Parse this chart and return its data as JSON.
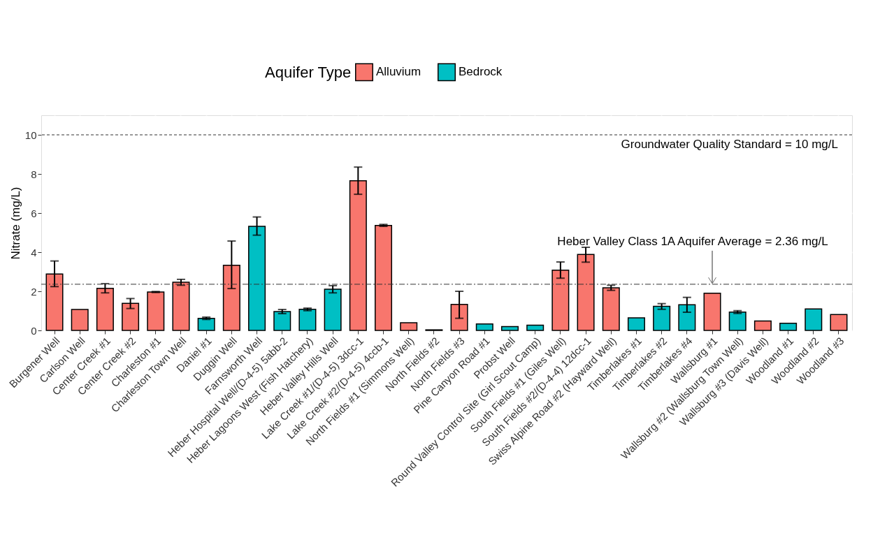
{
  "chart_data": {
    "type": "bar",
    "ylabel": "Nitrate (mg/L)",
    "legend_title": "Aquifer Type",
    "legend": "top",
    "grid": true,
    "categories": [
      "Burgener Well",
      "Carlson Well",
      "Center Creek #1",
      "Center Creek #2",
      "Charleston #1",
      "Charleston Town Well",
      "Daniel #1",
      "Duggin Well",
      "Farnsworth Well",
      "Heber Hospital Well/(D-4-5) 5abb-2",
      "Heber Lagoons West (Fish Hatchery)",
      "Heber Valley Hills Well",
      "Lake Creek #1/(D-4-5) 3dcc-1",
      "Lake Creek #2/(D-4-5) 4ccb-1",
      "North Fields #1 (Simmons Well)",
      "North Fields #2",
      "North Fields #3",
      "Pine Canyon Road #1",
      "Probst Well",
      "Round Valley Control Site (Girl Scout Camp)",
      "South Fields #1 (Giles Well)",
      "South Fields #2/(D-4-4) 12dcc-1",
      "Swiss Alpine Road #2 (Hayward Well)",
      "Timberlakes #1",
      "Timberlakes #2",
      "Timberlakes #4",
      "Wallsburg #1",
      "Wallsburg #2 (Wallsburg Town Well)",
      "Wallsburg #3 (Davis Well)",
      "Woodland #1",
      "Woodland #2",
      "Woodland #3"
    ],
    "series": [
      {
        "name": "Alluvium",
        "color": "#f8766d",
        "values": [
          2.88,
          1.07,
          2.15,
          1.38,
          1.96,
          2.46,
          null,
          3.33,
          null,
          null,
          null,
          null,
          7.65,
          5.37,
          0.39,
          0.03,
          1.33,
          null,
          null,
          null,
          3.08,
          3.88,
          2.18,
          null,
          null,
          null,
          1.9,
          null,
          0.48,
          null,
          null,
          0.81
        ],
        "errors": [
          [
            2.24,
            3.55
          ],
          null,
          [
            1.92,
            2.39
          ],
          [
            1.12,
            1.63
          ],
          [
            1.94,
            1.99
          ],
          [
            2.31,
            2.61
          ],
          null,
          [
            2.14,
            4.57
          ],
          null,
          null,
          null,
          null,
          [
            6.96,
            8.35
          ],
          [
            5.32,
            5.42
          ],
          null,
          null,
          [
            0.62,
            2.0
          ],
          null,
          null,
          null,
          [
            2.67,
            3.5
          ],
          [
            3.49,
            4.25
          ],
          [
            2.05,
            2.31
          ],
          null,
          null,
          null,
          null,
          null,
          null,
          null,
          null,
          null
        ]
      },
      {
        "name": "Bedrock",
        "color": "#00bfc4",
        "values": [
          null,
          null,
          null,
          null,
          null,
          null,
          0.62,
          null,
          5.32,
          0.96,
          1.08,
          2.11,
          null,
          null,
          null,
          null,
          null,
          0.33,
          0.2,
          0.27,
          null,
          null,
          null,
          0.64,
          1.23,
          1.31,
          null,
          0.94,
          null,
          0.37,
          1.1,
          null
        ],
        "errors": [
          null,
          null,
          null,
          null,
          null,
          null,
          [
            0.56,
            0.68
          ],
          null,
          [
            4.87,
            5.8
          ],
          [
            0.86,
            1.07
          ],
          [
            1.01,
            1.14
          ],
          [
            1.92,
            2.29
          ],
          null,
          null,
          null,
          null,
          null,
          null,
          null,
          null,
          null,
          null,
          null,
          null,
          [
            1.08,
            1.37
          ],
          [
            0.93,
            1.69
          ],
          null,
          [
            0.87,
            1.01
          ],
          null,
          null,
          null,
          null
        ]
      }
    ],
    "ylim": [
      0,
      11
    ],
    "yticks": [
      0,
      2,
      4,
      6,
      8,
      10
    ],
    "ref_lines": [
      {
        "axis": "y",
        "value": 10,
        "label": "Groundwater Quality Standard = 10 mg/L",
        "line_style": "dashed"
      },
      {
        "axis": "y",
        "value": 2.36,
        "line_style": "dashdot"
      }
    ],
    "annotations": [
      {
        "text": "Heber Valley Class 1A Aquifer Average = 2.36 mg/L",
        "x": "Wallsburg #1",
        "y": 2.36
      }
    ]
  }
}
